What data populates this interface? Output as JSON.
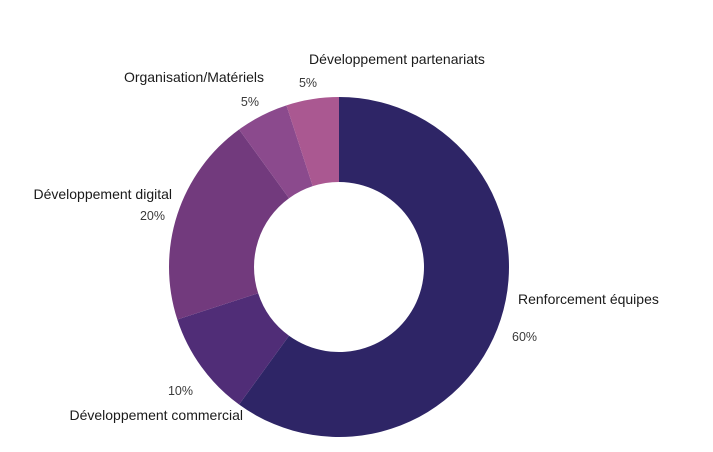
{
  "chart_data": {
    "type": "pie",
    "variant": "donut",
    "title": "",
    "slices": [
      {
        "label": "Renforcement équipes",
        "value": 60,
        "value_label": "60%",
        "color": "#2e2566"
      },
      {
        "label": "Développement commercial",
        "value": 10,
        "value_label": "10%",
        "color": "#502d77"
      },
      {
        "label": "Développement digital",
        "value": 20,
        "value_label": "20%",
        "color": "#723a7d"
      },
      {
        "label": "Organisation/Matériels",
        "value": 5,
        "value_label": "5%",
        "color": "#8b4a8d"
      },
      {
        "label": "Développement partenariats",
        "value": 5,
        "value_label": "5%",
        "color": "#aa5891"
      }
    ],
    "legend": "none"
  }
}
